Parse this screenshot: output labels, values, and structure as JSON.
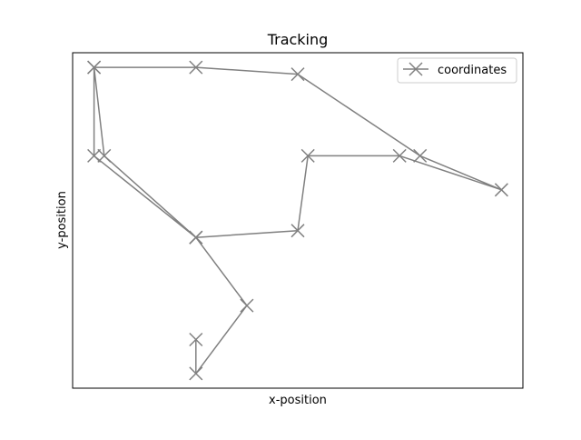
{
  "chart_data": {
    "type": "line",
    "title": "Tracking",
    "xlabel": "x-position",
    "ylabel": "y-position",
    "x_ticks_visible": false,
    "y_ticks_visible": false,
    "grid": false,
    "legend_position": "top-right",
    "series": [
      {
        "name": "coordinates",
        "color": "#808080",
        "marker": "x",
        "points": [
          {
            "x": 6.0,
            "y": 1.0
          },
          {
            "x": 6.0,
            "y": 0.0
          },
          {
            "x": 7.0,
            "y": 2.0
          },
          {
            "x": 6.0,
            "y": 4.0
          },
          {
            "x": 8.0,
            "y": 4.2
          },
          {
            "x": 8.2,
            "y": 6.4
          },
          {
            "x": 10.0,
            "y": 6.4
          },
          {
            "x": 12.0,
            "y": 5.4
          },
          {
            "x": 10.4,
            "y": 6.4
          },
          {
            "x": 8.0,
            "y": 8.8
          },
          {
            "x": 6.0,
            "y": 9.0
          },
          {
            "x": 4.0,
            "y": 9.0
          },
          {
            "x": 4.2,
            "y": 6.4
          },
          {
            "x": 6.0,
            "y": 4.0
          },
          {
            "x": 4.0,
            "y": 6.4
          },
          {
            "x": 4.0,
            "y": 9.0
          }
        ]
      }
    ],
    "xlim": [
      3.58,
      12.42
    ],
    "ylim": [
      9.43,
      -0.43
    ]
  }
}
